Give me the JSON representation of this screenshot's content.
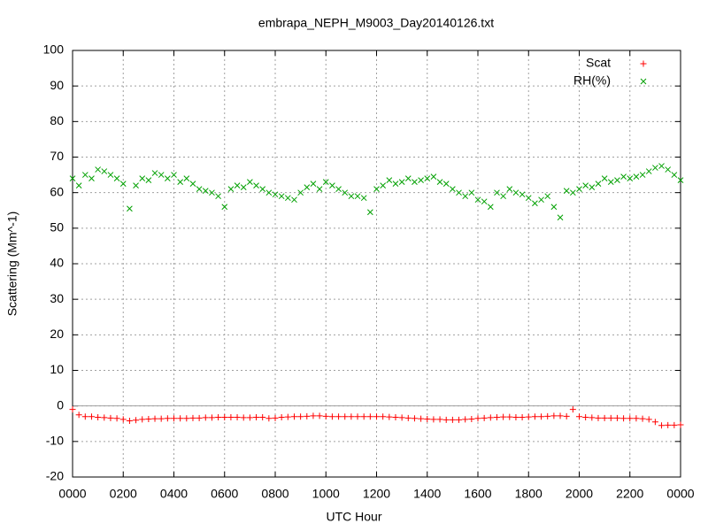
{
  "chart_data": {
    "type": "scatter",
    "title": "embrapa_NEPH_M9003_Day20140126.txt",
    "x_label": "UTC Hour",
    "y_label": "Scattering (Mm^-1)",
    "xlim": [
      0,
      24
    ],
    "xticks": [
      {
        "value": 0,
        "label": "0000"
      },
      {
        "value": 2,
        "label": "0200"
      },
      {
        "value": 4,
        "label": "0400"
      },
      {
        "value": 6,
        "label": "0600"
      },
      {
        "value": 8,
        "label": "0800"
      },
      {
        "value": 10,
        "label": "1000"
      },
      {
        "value": 12,
        "label": "1200"
      },
      {
        "value": 14,
        "label": "1400"
      },
      {
        "value": 16,
        "label": "1600"
      },
      {
        "value": 18,
        "label": "1800"
      },
      {
        "value": 20,
        "label": "2000"
      },
      {
        "value": 22,
        "label": "2200"
      },
      {
        "value": 24,
        "label": "0000"
      }
    ],
    "ylim": [
      -20,
      100
    ],
    "yticks": [
      -20,
      -10,
      0,
      10,
      20,
      30,
      40,
      50,
      60,
      70,
      80,
      90,
      100
    ],
    "grid": true,
    "legend": "top-right",
    "x": [
      0,
      0.25,
      0.5,
      0.75,
      1,
      1.25,
      1.5,
      1.75,
      2,
      2.25,
      2.5,
      2.75,
      3,
      3.25,
      3.5,
      3.75,
      4,
      4.25,
      4.5,
      4.75,
      5,
      5.25,
      5.5,
      5.75,
      6,
      6.25,
      6.5,
      6.75,
      7,
      7.25,
      7.5,
      7.75,
      8,
      8.25,
      8.5,
      8.75,
      9,
      9.25,
      9.5,
      9.75,
      10,
      10.25,
      10.5,
      10.75,
      11,
      11.25,
      11.5,
      11.75,
      12,
      12.25,
      12.5,
      12.75,
      13,
      13.25,
      13.5,
      13.75,
      14,
      14.25,
      14.5,
      14.75,
      15,
      15.25,
      15.5,
      15.75,
      16,
      16.25,
      16.5,
      16.75,
      17,
      17.25,
      17.5,
      17.75,
      18,
      18.25,
      18.5,
      18.75,
      19,
      19.25,
      19.5,
      19.75,
      20,
      20.25,
      20.5,
      20.75,
      21,
      21.25,
      21.5,
      21.75,
      22,
      22.25,
      22.5,
      22.75,
      23,
      23.25,
      23.5,
      23.75,
      24
    ],
    "series": [
      {
        "name": "Scat",
        "color": "#ff0000",
        "marker": "plus",
        "values": [
          -1,
          -2.5,
          -3,
          -3,
          -3.2,
          -3.3,
          -3.4,
          -3.5,
          -3.8,
          -4.2,
          -4,
          -3.8,
          -3.7,
          -3.6,
          -3.6,
          -3.5,
          -3.5,
          -3.5,
          -3.5,
          -3.4,
          -3.4,
          -3.3,
          -3.3,
          -3.2,
          -3.2,
          -3.2,
          -3.2,
          -3.3,
          -3.3,
          -3.2,
          -3.2,
          -3.5,
          -3.4,
          -3.2,
          -3.1,
          -3,
          -3,
          -2.9,
          -2.8,
          -2.8,
          -2.9,
          -3,
          -3,
          -3,
          -3,
          -3,
          -3,
          -3,
          -3,
          -3,
          -3.1,
          -3.2,
          -3.3,
          -3.4,
          -3.5,
          -3.6,
          -3.7,
          -3.8,
          -3.8,
          -3.9,
          -3.9,
          -3.9,
          -3.8,
          -3.7,
          -3.5,
          -3.4,
          -3.3,
          -3.2,
          -3.1,
          -3.1,
          -3.2,
          -3.2,
          -3.1,
          -3,
          -3,
          -2.9,
          -2.8,
          -2.8,
          -2.9,
          -1,
          -3,
          -3.2,
          -3.3,
          -3.4,
          -3.4,
          -3.4,
          -3.4,
          -3.5,
          -3.5,
          -3.5,
          -3.6,
          -3.8,
          -4.5,
          -5.5,
          -5.4,
          -5.4,
          -5.3
        ]
      },
      {
        "name": "RH(%)",
        "color": "#00a000",
        "marker": "cross",
        "values": [
          64,
          62,
          65,
          64,
          66.5,
          66,
          65,
          64,
          62.5,
          55.5,
          62,
          64,
          63.5,
          65.5,
          65,
          64,
          65,
          63,
          64,
          62.5,
          61,
          60.5,
          60,
          59,
          56,
          61,
          62,
          61.5,
          63,
          62,
          61,
          60,
          59.5,
          59,
          58.5,
          58,
          60,
          61.5,
          62.5,
          61,
          63,
          62,
          61,
          60,
          59,
          59,
          58.5,
          54.5,
          61,
          62,
          63.5,
          62.5,
          63,
          64,
          63,
          63.5,
          64,
          64.5,
          63,
          62.5,
          61,
          60,
          59,
          60,
          58,
          57.5,
          56,
          60,
          59,
          61,
          60,
          59.5,
          58.5,
          57,
          58,
          59,
          56,
          53,
          60.5,
          60,
          61,
          62,
          61.5,
          62.5,
          64,
          63,
          63.5,
          64.5,
          64,
          64.5,
          65,
          66,
          67,
          67.5,
          66.5,
          65,
          63.5
        ]
      }
    ]
  }
}
